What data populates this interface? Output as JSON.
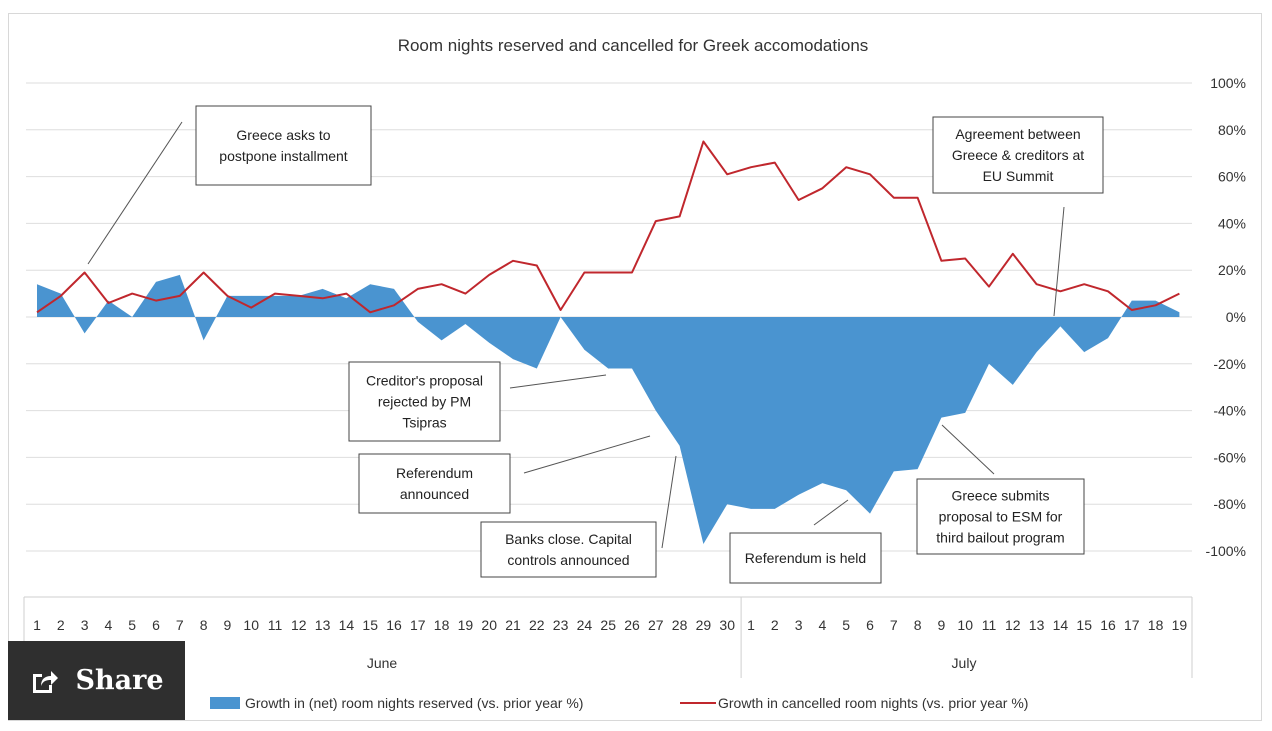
{
  "share_button": {
    "label": "Share",
    "icon": "share-icon"
  },
  "chart_data": {
    "type": "area",
    "title": "Room nights reserved and cancelled for Greek accomodations",
    "x": [
      "1",
      "2",
      "3",
      "4",
      "5",
      "6",
      "7",
      "8",
      "9",
      "10",
      "11",
      "12",
      "13",
      "14",
      "15",
      "16",
      "17",
      "18",
      "19",
      "20",
      "21",
      "22",
      "23",
      "24",
      "25",
      "26",
      "27",
      "28",
      "29",
      "30",
      "1",
      "2",
      "3",
      "4",
      "5",
      "6",
      "7",
      "8",
      "9",
      "10",
      "11",
      "12",
      "13",
      "14",
      "15",
      "16",
      "17",
      "18",
      "19"
    ],
    "month_groups": [
      {
        "label": "June",
        "count": 30
      },
      {
        "label": "July",
        "count": 19
      }
    ],
    "yticks": [
      "100%",
      "80%",
      "60%",
      "40%",
      "20%",
      "0%",
      "-20%",
      "-40%",
      "-60%",
      "-80%",
      "-100%"
    ],
    "ylim": [
      -100,
      100
    ],
    "grid": true,
    "legend_position": "bottom",
    "series": [
      {
        "name": "Growth in (net) room nights reserved (vs. prior year %)",
        "type": "area",
        "color": "#4a94d0",
        "values": [
          14,
          10,
          -7,
          7,
          0,
          15,
          18,
          -10,
          9,
          9,
          9,
          9,
          12,
          8,
          14,
          12,
          -2,
          -10,
          -3,
          -11,
          -18,
          -22,
          0,
          -14,
          -22,
          -22,
          -40,
          -55,
          -97,
          -80,
          -82,
          -82,
          -76,
          -71,
          -74,
          -84,
          -66,
          -65,
          -43,
          -41,
          -20,
          -29,
          -15,
          -4,
          -15,
          -9,
          7,
          7,
          2
        ]
      },
      {
        "name": "Growth in cancelled room nights (vs. prior year %)",
        "type": "line",
        "color": "#c0272d",
        "values": [
          2,
          9,
          19,
          6,
          10,
          7,
          9,
          19,
          9,
          4,
          10,
          9,
          8,
          10,
          2,
          5,
          12,
          14,
          10,
          18,
          24,
          22,
          3,
          19,
          19,
          19,
          41,
          43,
          75,
          61,
          64,
          66,
          50,
          55,
          64,
          61,
          51,
          51,
          24,
          25,
          13,
          27,
          14,
          11,
          14,
          11,
          3,
          5,
          10
        ]
      }
    ],
    "annotations": [
      {
        "lines": [
          "Greece asks to",
          "postpone installment"
        ]
      },
      {
        "lines": [
          "Agreement  between",
          "Greece  & creditors at",
          "EU Summit"
        ]
      },
      {
        "lines": [
          "Creditor's proposal",
          "rejected by PM",
          "Tsipras"
        ]
      },
      {
        "lines": [
          "Referendum",
          "announced"
        ]
      },
      {
        "lines": [
          "Banks close. Capital",
          "controls announced"
        ]
      },
      {
        "lines": [
          "Referendum  is held"
        ]
      },
      {
        "lines": [
          "Greece submits",
          "proposal to ESM for",
          "third bailout program"
        ]
      }
    ]
  }
}
